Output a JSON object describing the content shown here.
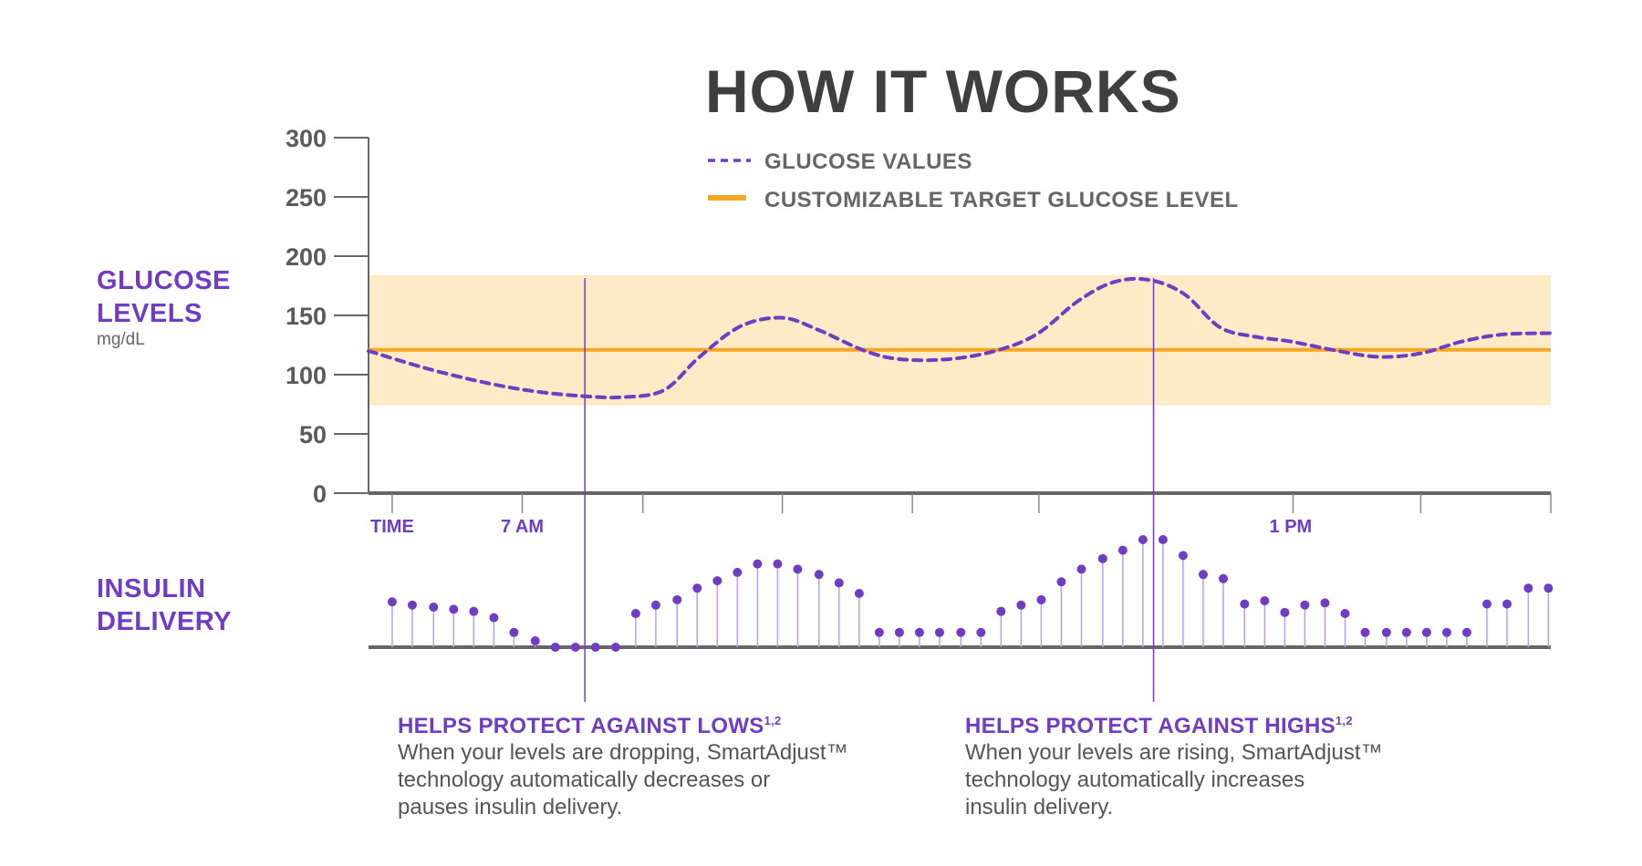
{
  "title": "HOW IT WORKS",
  "glucose_label": {
    "line1": "GLUCOSE",
    "line2": "LEVELS",
    "unit": "mg/dL"
  },
  "insulin_label": {
    "line1": "INSULIN",
    "line2": "DELIVERY"
  },
  "legend": [
    {
      "label": "GLUCOSE VALUES",
      "style": "dashed",
      "color": "#6f3cc4"
    },
    {
      "label": "CUSTOMIZABLE TARGET GLUCOSE LEVEL",
      "style": "solid",
      "color": "#f5a623"
    }
  ],
  "captions": [
    {
      "heading": "HELPS PROTECT AGAINST LOWS",
      "sup": "1,2",
      "body": [
        "When your levels are dropping, SmartAdjust™",
        "technology automatically decreases or",
        "pauses insulin delivery."
      ]
    },
    {
      "heading": "HELPS PROTECT AGAINST HIGHS",
      "sup": "1,2",
      "body": [
        "When your levels are rising, SmartAdjust™",
        "technology automatically increases",
        "insulin delivery."
      ]
    }
  ],
  "colors": {
    "purple": "#6f3cc4",
    "orange": "#f5a623",
    "band": "#fdebc8",
    "axis": "#666666",
    "text": "#3f3f3f"
  },
  "chart_data": {
    "type": "line",
    "y_ticks": [
      "300",
      "250",
      "200",
      "150",
      "100",
      "50",
      "0"
    ],
    "ylim": [
      0,
      300
    ],
    "xlim": [
      0,
      100
    ],
    "target_level": 121,
    "target_range": [
      74,
      184
    ],
    "x_labels": [
      {
        "text": "TIME",
        "x": 2
      },
      {
        "text": "7 AM",
        "x": 13
      },
      {
        "text": "1 PM",
        "x": 78
      }
    ],
    "x_ticks": [
      2,
      13,
      23.2,
      35,
      46,
      56.7,
      78.2,
      89,
      100
    ],
    "glucose": {
      "x": [
        0,
        5,
        10,
        14,
        18,
        21.5,
        25,
        28,
        31.5,
        35,
        38,
        42,
        45,
        49,
        53,
        56.5,
        60,
        63,
        66,
        69,
        72,
        75,
        78,
        82,
        85.5,
        89,
        92.5,
        96,
        100
      ],
      "y": [
        120,
        105,
        93,
        86,
        82,
        81,
        87,
        115,
        141,
        148,
        138,
        120,
        113,
        113,
        120,
        134,
        162,
        178,
        180,
        168,
        140,
        132,
        128,
        120,
        115,
        118,
        128,
        134,
        135
      ]
    },
    "event_markers": [
      {
        "x": 18.3,
        "caption": "HELPS PROTECT AGAINST LOWS"
      },
      {
        "x": 66.4,
        "caption": "HELPS PROTECT AGAINST HIGHS"
      }
    ],
    "insulin": {
      "x": [
        2,
        3.7,
        5.5,
        7.2,
        8.9,
        10.6,
        12.3,
        14.1,
        15.8,
        17.5,
        19.2,
        20.9,
        22.6,
        24.3,
        26.1,
        27.8,
        29.5,
        31.2,
        32.9,
        34.6,
        36.3,
        38.1,
        39.8,
        41.5,
        43.2,
        44.9,
        46.6,
        48.3,
        50.1,
        51.8,
        53.5,
        55.2,
        56.9,
        58.6,
        60.3,
        62.1,
        63.8,
        65.5,
        67.2,
        68.9,
        70.6,
        72.3,
        74.1,
        75.8,
        77.5,
        79.2,
        80.9,
        82.6,
        84.3,
        86.1,
        87.8,
        89.5,
        91.2,
        92.9,
        94.6,
        96.3,
        98.1,
        99.8
      ],
      "y": [
        43,
        40,
        38,
        36,
        34,
        28,
        14,
        6,
        0,
        0,
        0,
        0,
        32,
        40,
        45,
        56,
        63,
        71,
        79,
        79,
        74,
        69,
        61,
        51,
        14,
        14,
        14,
        14,
        14,
        14,
        34,
        40,
        45,
        62,
        74,
        84,
        92,
        102,
        102,
        87,
        69,
        65,
        41,
        44,
        33,
        40,
        42,
        32,
        14,
        14,
        14,
        14,
        14,
        14,
        41,
        41,
        56,
        56
      ]
    }
  }
}
